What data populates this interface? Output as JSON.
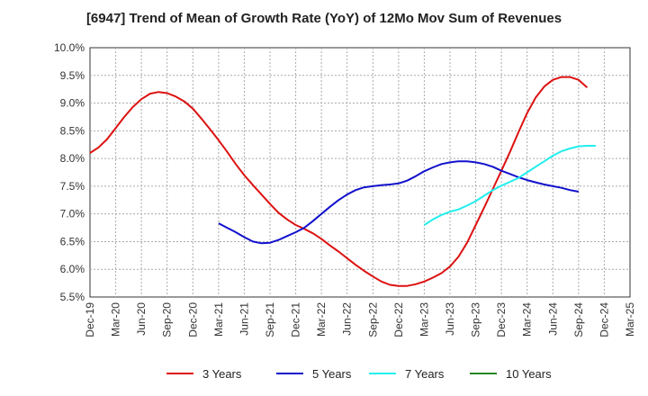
{
  "chart_data": {
    "type": "line",
    "title": "[6947]  Trend of Mean of Growth Rate (YoY) of 12Mo Mov Sum of Revenues",
    "xlabel": "",
    "ylabel": "",
    "ylim": [
      5.5,
      10.0
    ],
    "y_ticks": [
      "5.5%",
      "6.0%",
      "6.5%",
      "7.0%",
      "7.5%",
      "8.0%",
      "8.5%",
      "9.0%",
      "9.5%",
      "10.0%"
    ],
    "x_ticks": [
      "Dec-19",
      "Mar-20",
      "Jun-20",
      "Sep-20",
      "Dec-20",
      "Mar-21",
      "Jun-21",
      "Sep-21",
      "Dec-21",
      "Mar-22",
      "Jun-22",
      "Sep-22",
      "Dec-22",
      "Mar-23",
      "Jun-23",
      "Sep-23",
      "Dec-23",
      "Mar-24",
      "Jun-24",
      "Sep-24",
      "Dec-24",
      "Mar-25"
    ],
    "grid": true,
    "legend_position": "bottom",
    "series": [
      {
        "name": "3 Years",
        "color": "#dd1111",
        "start_index": 0,
        "values": [
          8.1,
          8.2,
          8.35,
          8.55,
          8.75,
          8.93,
          9.07,
          9.17,
          9.2,
          9.18,
          9.12,
          9.03,
          8.9,
          8.72,
          8.53,
          8.33,
          8.12,
          7.9,
          7.7,
          7.52,
          7.35,
          7.18,
          7.02,
          6.9,
          6.8,
          6.73,
          6.65,
          6.55,
          6.43,
          6.32,
          6.2,
          6.08,
          5.97,
          5.87,
          5.78,
          5.72,
          5.7,
          5.7,
          5.73,
          5.78,
          5.85,
          5.93,
          6.05,
          6.23,
          6.48,
          6.8,
          7.12,
          7.45,
          7.78,
          8.12,
          8.48,
          8.82,
          9.1,
          9.3,
          9.42,
          9.47,
          9.47,
          9.42,
          9.28
        ]
      },
      {
        "name": "5 Years",
        "color": "#1111cc",
        "start_index": 15,
        "values": [
          6.83,
          6.75,
          6.67,
          6.58,
          6.5,
          6.47,
          6.48,
          6.53,
          6.6,
          6.67,
          6.75,
          6.87,
          7.0,
          7.13,
          7.25,
          7.35,
          7.43,
          7.48,
          7.5,
          7.52,
          7.53,
          7.55,
          7.6,
          7.68,
          7.77,
          7.84,
          7.9,
          7.93,
          7.95,
          7.95,
          7.93,
          7.9,
          7.85,
          7.78,
          7.72,
          7.66,
          7.61,
          7.57,
          7.53,
          7.5,
          7.47,
          7.43,
          7.4
        ]
      },
      {
        "name": "7 Years",
        "color": "#22eeee",
        "start_index": 39,
        "values": [
          6.8,
          6.9,
          6.98,
          7.04,
          7.08,
          7.15,
          7.23,
          7.33,
          7.43,
          7.51,
          7.58,
          7.65,
          7.75,
          7.85,
          7.95,
          8.05,
          8.13,
          8.18,
          8.22,
          8.23,
          8.23
        ]
      },
      {
        "name": "10 Years",
        "color": "#228822",
        "start_index": 0,
        "values": []
      }
    ]
  }
}
